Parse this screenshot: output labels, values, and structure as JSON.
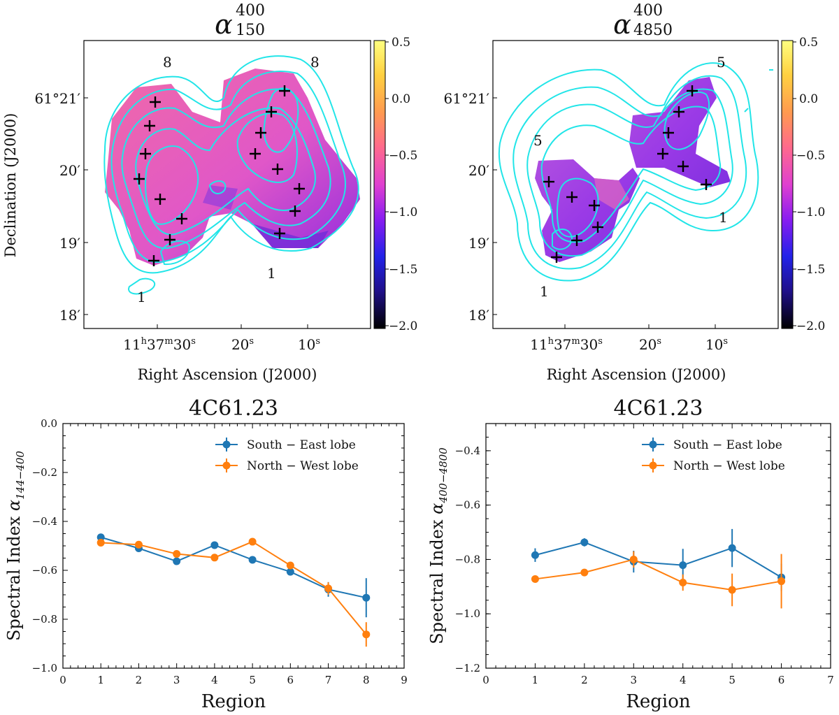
{
  "colors": {
    "south_east": "#1f77b4",
    "north_west": "#ff7f0e",
    "contour": "#22e5e8",
    "map_fill": "#e85cc7",
    "map_fill_dark": "#7b1fd6"
  },
  "maps": [
    {
      "title_base": "α",
      "title_sup": "400",
      "title_sub": "150",
      "xlabel": "Right Ascension (J2000)",
      "ylabel": "Declination (J2000)",
      "xticks": [
        {
          "pre": "11",
          "h": "h",
          "mid": "37",
          "m": "m",
          "post": "30",
          "s": "s"
        },
        {
          "pre": "",
          "h": "",
          "mid": "",
          "m": "",
          "post": "20",
          "s": "s"
        },
        {
          "pre": "",
          "h": "",
          "mid": "",
          "m": "",
          "post": "10",
          "s": "s"
        }
      ],
      "yticks": [
        "61°21′",
        "20′",
        "19′",
        "18′"
      ],
      "colorbar_ticks": [
        "0.5",
        "0.0",
        "−0.5",
        "−1.0",
        "−1.5",
        "−2.0"
      ],
      "contour_labels": [
        "8",
        "8",
        "1",
        "1"
      ]
    },
    {
      "title_base": "α",
      "title_sup": "400",
      "title_sub": "4850",
      "xlabel": "Right Ascension (J2000)",
      "ylabel": "",
      "xticks": [
        {
          "pre": "11",
          "h": "h",
          "mid": "37",
          "m": "m",
          "post": "30",
          "s": "s"
        },
        {
          "pre": "",
          "h": "",
          "mid": "",
          "m": "",
          "post": "20",
          "s": "s"
        },
        {
          "pre": "",
          "h": "",
          "mid": "",
          "m": "",
          "post": "10",
          "s": "s"
        }
      ],
      "yticks": [
        "61°21′",
        "20′",
        "19′",
        "18′"
      ],
      "colorbar_ticks": [
        "0.5",
        "0.0",
        "−0.5",
        "−1.0",
        "−1.5",
        "−2.0"
      ],
      "contour_labels": [
        "5",
        "5",
        "1",
        "1"
      ]
    }
  ],
  "chart_data": [
    {
      "type": "line",
      "title": "4C61.23",
      "xlabel": "Region",
      "ylabel_main": "Spectral Index ",
      "ylabel_sym": "α",
      "ylabel_sub": "144−400",
      "xlim": [
        0,
        9
      ],
      "ylim": [
        -1.0,
        0.0
      ],
      "xticks": [
        0,
        1,
        2,
        3,
        4,
        5,
        6,
        7,
        8,
        9
      ],
      "yticks": [
        -1.0,
        -0.8,
        -0.6,
        -0.4,
        -0.2,
        0.0
      ],
      "ytick_labels": [
        "−1.0",
        "−0.8",
        "−0.6",
        "−0.4",
        "−0.2",
        "0.0"
      ],
      "legend_position": "top-right",
      "series": [
        {
          "name": "South − East lobe",
          "color_key": "south_east",
          "x": [
            1,
            2,
            3,
            4,
            5,
            6,
            7,
            8
          ],
          "y": [
            -0.465,
            -0.51,
            -0.563,
            -0.497,
            -0.557,
            -0.606,
            -0.678,
            -0.712
          ],
          "err": [
            0.01,
            0.01,
            0.01,
            0.01,
            0.01,
            0.015,
            0.03,
            0.08
          ]
        },
        {
          "name": "North − West lobe",
          "color_key": "north_west",
          "x": [
            1,
            2,
            3,
            4,
            5,
            6,
            7,
            8
          ],
          "y": [
            -0.487,
            -0.495,
            -0.533,
            -0.548,
            -0.483,
            -0.58,
            -0.674,
            -0.862
          ],
          "err": [
            0.01,
            0.01,
            0.01,
            0.01,
            0.01,
            0.01,
            0.025,
            0.05
          ]
        }
      ]
    },
    {
      "type": "line",
      "title": "4C61.23",
      "xlabel": "Region",
      "ylabel_main": "Spectral Index ",
      "ylabel_sym": "α",
      "ylabel_sub": "400−4800",
      "xlim": [
        0,
        7
      ],
      "ylim": [
        -1.2,
        -0.3
      ],
      "xticks": [
        0,
        1,
        2,
        3,
        4,
        5,
        6,
        7
      ],
      "yticks": [
        -1.2,
        -1.0,
        -0.8,
        -0.6,
        -0.4
      ],
      "ytick_labels": [
        "−1.2",
        "−1.0",
        "−0.8",
        "−0.6",
        "−0.4"
      ],
      "legend_position": "top-right",
      "series": [
        {
          "name": "South − East lobe",
          "color_key": "south_east",
          "x": [
            1,
            2,
            3,
            4,
            5,
            6
          ],
          "y": [
            -0.784,
            -0.737,
            -0.808,
            -0.821,
            -0.758,
            -0.866
          ],
          "err": [
            0.025,
            0.015,
            0.04,
            0.06,
            0.07,
            0.05
          ]
        },
        {
          "name": "North − West lobe",
          "color_key": "north_west",
          "x": [
            1,
            2,
            3,
            4,
            5,
            6
          ],
          "y": [
            -0.872,
            -0.848,
            -0.8,
            -0.885,
            -0.912,
            -0.88
          ],
          "err": [
            0.005,
            0.005,
            0.03,
            0.03,
            0.06,
            0.1
          ]
        }
      ]
    }
  ]
}
